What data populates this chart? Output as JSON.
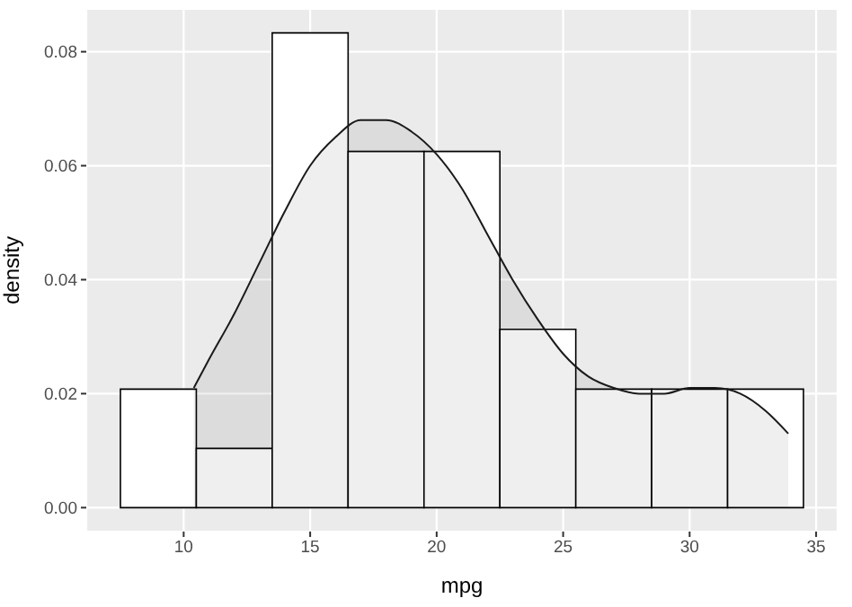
{
  "chart_data": {
    "type": "histogram",
    "xlabel": "mpg",
    "ylabel": "density",
    "series": [
      {
        "color": "#ffffff",
        "bins": [
          7.5,
          10.5,
          13.5,
          16.5,
          19.5,
          22.5,
          25.5,
          28.5,
          31.5,
          34.5
        ],
        "values": [
          0.0208,
          0.0104,
          0.0833,
          0.0625,
          0.0625,
          0.0313,
          0.0208,
          0.0208,
          0.0208
        ]
      },
      {
        "type": "area",
        "color": "#1a1a1a",
        "x": [
          10.4,
          11,
          12,
          13,
          14,
          15,
          16,
          17,
          18,
          19,
          20,
          21,
          22,
          23,
          24,
          25,
          26,
          27,
          28,
          29,
          30,
          31,
          32,
          33,
          33.9
        ],
        "values": [
          0.021,
          0.026,
          0.034,
          0.043,
          0.052,
          0.06,
          0.065,
          0.068,
          0.068,
          0.066,
          0.062,
          0.056,
          0.048,
          0.04,
          0.033,
          0.027,
          0.023,
          0.021,
          0.02,
          0.02,
          0.021,
          0.021,
          0.02,
          0.017,
          0.013
        ]
      }
    ],
    "xlim": [
      6.15,
      35.85
    ],
    "xticks": [
      10,
      15,
      20,
      25,
      30,
      35
    ],
    "ylim": [
      -0.0042,
      0.0875
    ],
    "yticks": [
      {
        "value": 0,
        "label": "0.00"
      },
      {
        "value": 0.02,
        "label": "0.02"
      },
      {
        "value": 0.04,
        "label": "0.04"
      },
      {
        "value": 0.06,
        "label": "0.06"
      },
      {
        "value": 0.08,
        "label": "0.08"
      }
    ],
    "grid": true
  }
}
